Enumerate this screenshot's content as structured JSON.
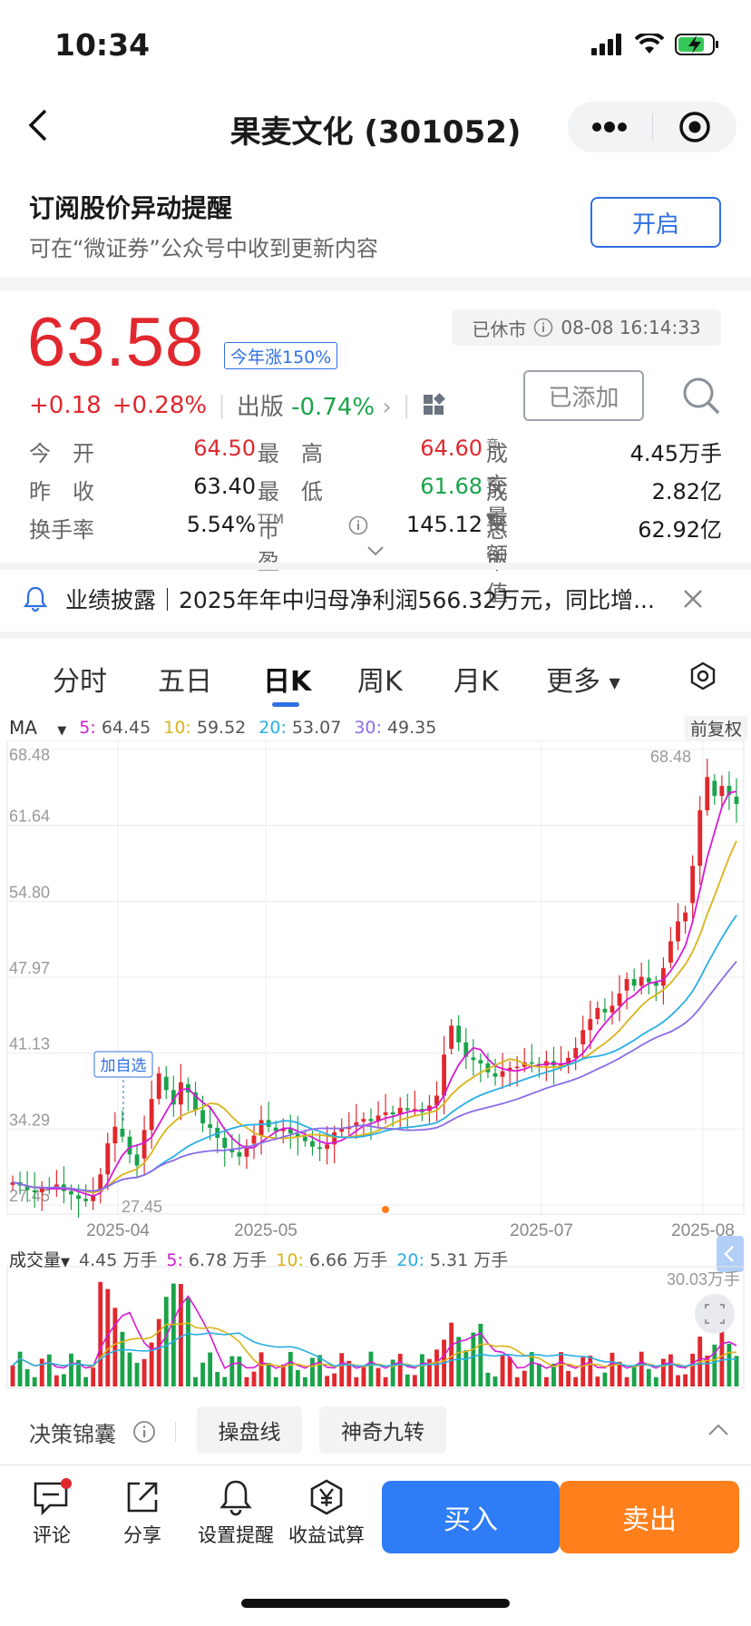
{
  "status": {
    "time": "10:34"
  },
  "nav": {
    "title": "果麦文化 (301052)"
  },
  "subscribe": {
    "title": "订阅股价异动提醒",
    "desc": "可在“微证券”公众号中收到更新内容",
    "button": "开启"
  },
  "quote": {
    "price": "63.58",
    "ytd_badge": "今年涨150%",
    "change": "+0.18",
    "change_pct": "+0.28%",
    "sector": "出版",
    "sector_pct": "-0.74%",
    "market_status": "已休市",
    "datetime": "08-08 16:14:33",
    "added_label": "已添加"
  },
  "stats": {
    "open_label": "今　开",
    "open": "64.50",
    "high_label": "最　高",
    "high": "64.60",
    "volume_label": "成交量",
    "volume_sup": "竞",
    "volume": "4.45万手",
    "prev_label": "昨　收",
    "prev": "63.40",
    "low_label": "最　低",
    "low": "61.68",
    "amount_label": "成交额",
    "amount_sup": "竞",
    "amount": "2.82亿",
    "turnover_label": "换手率",
    "turnover": "5.54%",
    "pe_label": "市盈",
    "pe_sup": "TTM",
    "pe": "145.12",
    "mcap_label": "总市值",
    "mcap": "62.92亿"
  },
  "announcement": {
    "text": "业绩披露｜2025年年中归母净利润566.32万元，同比增..."
  },
  "tabs": [
    "分时",
    "五日",
    "日K",
    "周K",
    "月K",
    "更多"
  ],
  "active_tab": "日K",
  "ma": {
    "label": "MA",
    "ma5_label": "5:",
    "ma5": "64.45",
    "ma10_label": "10:",
    "ma10": "59.52",
    "ma20_label": "20:",
    "ma20": "53.07",
    "ma30_label": "30:",
    "ma30": "49.35",
    "adjust": "前复权"
  },
  "colors": {
    "red": "#e0282e",
    "green": "#1aa34a",
    "ma5": "#d61ad6",
    "ma10": "#d9b41a",
    "ma20": "#29aee6",
    "ma30": "#8b6be8",
    "blue": "#2f6fe4",
    "orange": "#fe7f1b"
  },
  "chart_data": {
    "type": "candlestick",
    "y_ticks": [
      "68.48",
      "61.64",
      "54.80",
      "47.97",
      "41.13",
      "34.29",
      "27.45"
    ],
    "ylim": [
      27.45,
      68.48
    ],
    "x_ticks": [
      "2025-04",
      "2025-05",
      "2025-07",
      "2025-08"
    ],
    "max_label": "68.48",
    "min_label": "27.45",
    "annotation": "加自选",
    "close_trend": [
      29.5,
      29.2,
      28.8,
      28.6,
      29.0,
      28.9,
      29.3,
      28.7,
      28.4,
      28.0,
      27.8,
      28.3,
      30.2,
      33.0,
      34.5,
      33.6,
      32.0,
      31.0,
      34.2,
      37.0,
      39.3,
      37.8,
      36.5,
      38.5,
      37.6,
      36.0,
      34.8,
      34.4,
      33.5,
      32.6,
      32.2,
      31.8,
      32.8,
      33.7,
      35.1,
      34.5,
      34.1,
      34.3,
      33.9,
      33.6,
      33.2,
      32.7,
      32.5,
      32.9,
      34.0,
      34.3,
      34.5,
      34.9,
      35.2,
      35.0,
      35.5,
      35.8,
      35.6,
      36.2,
      36.0,
      36.1,
      35.8,
      36.4,
      37.3,
      41.0,
      43.6,
      42.1,
      40.8,
      40.5,
      40.2,
      39.4,
      39.0,
      39.5,
      39.8,
      39.9,
      40.3,
      40.2,
      40.0,
      40.4,
      40.0,
      40.1,
      40.7,
      41.6,
      43.2,
      44.2,
      45.2,
      44.8,
      45.4,
      46.5,
      47.8,
      47.2,
      48.0,
      47.5,
      47.2,
      48.8,
      51.2,
      53.0,
      53.8,
      58.0,
      63.0,
      66.0,
      64.3,
      65.2,
      64.4,
      63.58
    ],
    "volume": {
      "legend_label": "成交量",
      "latest": "4.45 万手",
      "ma5_label": "5:",
      "ma5": "6.78 万手",
      "ma10_label": "10:",
      "ma10": "6.66 万手",
      "ma20_label": "20:",
      "ma20": "5.31 万手",
      "max_label": "30.03万手"
    }
  },
  "decision": {
    "title": "决策锦囊",
    "chip1": "操盘线",
    "chip2": "神奇九转"
  },
  "bottom": {
    "comment": "评论",
    "share": "分享",
    "alert": "设置提醒",
    "calc": "收益试算",
    "buy": "买入",
    "sell": "卖出"
  }
}
